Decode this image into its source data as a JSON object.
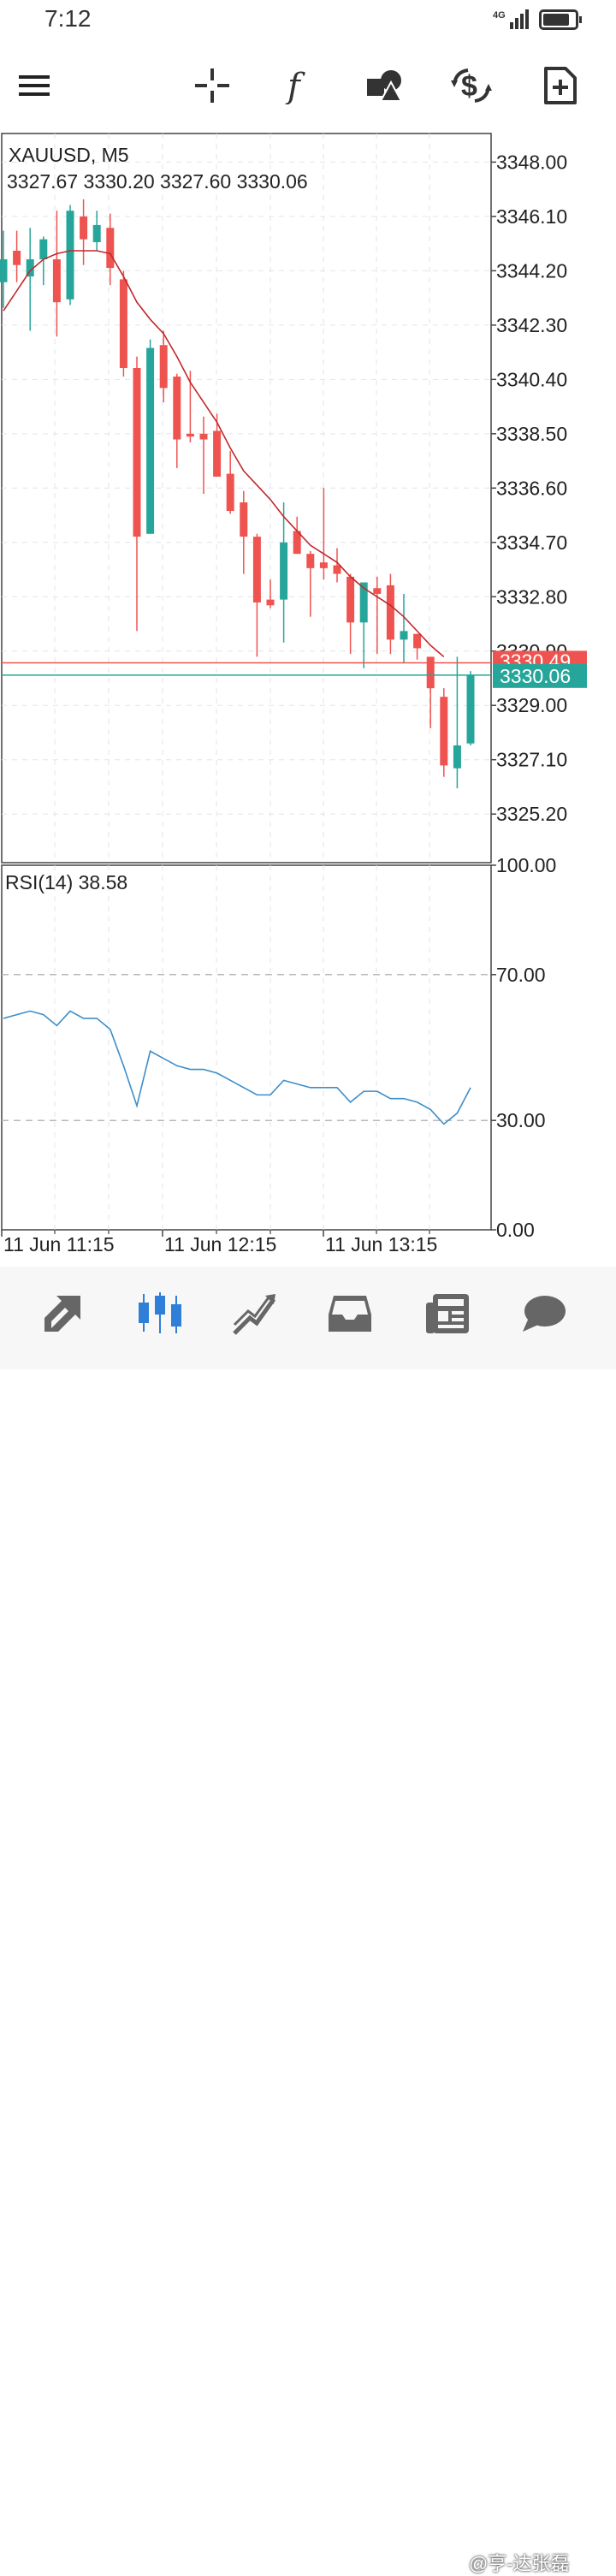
{
  "status_bar": {
    "time": "7:12",
    "network": "4G"
  },
  "toolbar": {
    "buttons": [
      {
        "name": "menu",
        "icon": "hamburger-icon"
      },
      {
        "name": "crosshair",
        "icon": "crosshair-icon"
      },
      {
        "name": "indicators",
        "icon": "function-icon"
      },
      {
        "name": "objects",
        "icon": "shapes-icon"
      },
      {
        "name": "trade",
        "icon": "dollar-arrows-icon"
      },
      {
        "name": "new-order",
        "icon": "document-plus-icon"
      }
    ]
  },
  "chart": {
    "symbol_label": "XAUUSD, M5",
    "ohlc_label": "3327.67 3330.20 3327.60 3330.06",
    "price_ticks": [
      "3348.00",
      "3346.10",
      "3344.20",
      "3342.30",
      "3340.40",
      "3338.50",
      "3336.60",
      "3334.70",
      "3332.80",
      "3330.90",
      "3329.00",
      "3327.10",
      "3325.20"
    ],
    "ask_label": "3330.49",
    "bid_label": "3330.06",
    "rsi_label": "RSI(14) 38.58",
    "rsi_ticks": [
      "100.00",
      "70.00",
      "30.00",
      "0.00"
    ],
    "time_labels": [
      "11 Jun 11:15",
      "11 Jun 12:15",
      "11 Jun 13:15"
    ],
    "colors": {
      "bull": "#26a69a",
      "bear": "#ef5350",
      "ma": "#c0292b",
      "rsi": "#3d8ec9",
      "bid_line": "#26a69a",
      "ask_line": "#ef5350"
    }
  },
  "chart_data": {
    "type": "candlestick",
    "timeframe": "M5",
    "price_range": [
      3323.5,
      3349
    ],
    "rsi_range": [
      0,
      100
    ],
    "candles": [
      {
        "o": 3343.8,
        "h": 3345.6,
        "l": 3342.9,
        "c": 3344.6
      },
      {
        "o": 3344.9,
        "h": 3345.6,
        "l": 3343.8,
        "c": 3344.4
      },
      {
        "o": 3344.0,
        "h": 3345.7,
        "l": 3342.1,
        "c": 3344.6
      },
      {
        "o": 3344.6,
        "h": 3345.4,
        "l": 3343.7,
        "c": 3345.3
      },
      {
        "o": 3344.6,
        "h": 3346.3,
        "l": 3341.9,
        "c": 3343.1
      },
      {
        "o": 3343.2,
        "h": 3346.5,
        "l": 3343.0,
        "c": 3346.3
      },
      {
        "o": 3346.1,
        "h": 3346.7,
        "l": 3344.4,
        "c": 3345.3
      },
      {
        "o": 3345.2,
        "h": 3346.3,
        "l": 3344.9,
        "c": 3345.8
      },
      {
        "o": 3345.7,
        "h": 3346.2,
        "l": 3343.7,
        "c": 3344.3
      },
      {
        "o": 3343.9,
        "h": 3344.2,
        "l": 3340.5,
        "c": 3340.8
      },
      {
        "o": 3340.8,
        "h": 3341.2,
        "l": 3331.6,
        "c": 3334.9
      },
      {
        "o": 3335.0,
        "h": 3341.8,
        "l": 3335.0,
        "c": 3341.5
      },
      {
        "o": 3341.6,
        "h": 3342.1,
        "l": 3339.6,
        "c": 3340.1
      },
      {
        "o": 3340.5,
        "h": 3340.6,
        "l": 3337.3,
        "c": 3338.3
      },
      {
        "o": 3338.5,
        "h": 3340.7,
        "l": 3338.2,
        "c": 3338.4
      },
      {
        "o": 3338.5,
        "h": 3339.1,
        "l": 3336.4,
        "c": 3338.3
      },
      {
        "o": 3338.6,
        "h": 3339.2,
        "l": 3337.0,
        "c": 3337.0
      },
      {
        "o": 3337.1,
        "h": 3337.9,
        "l": 3335.7,
        "c": 3335.8
      },
      {
        "o": 3336.1,
        "h": 3336.5,
        "l": 3333.6,
        "c": 3334.9
      },
      {
        "o": 3334.9,
        "h": 3335.0,
        "l": 3330.7,
        "c": 3332.6
      },
      {
        "o": 3332.7,
        "h": 3333.4,
        "l": 3332.4,
        "c": 3332.5
      },
      {
        "o": 3332.7,
        "h": 3336.1,
        "l": 3331.2,
        "c": 3334.7
      },
      {
        "o": 3335.1,
        "h": 3335.6,
        "l": 3334.3,
        "c": 3334.3
      },
      {
        "o": 3334.3,
        "h": 3334.4,
        "l": 3332.1,
        "c": 3333.8
      },
      {
        "o": 3334.0,
        "h": 3336.6,
        "l": 3333.4,
        "c": 3333.8
      },
      {
        "o": 3333.9,
        "h": 3334.5,
        "l": 3333.3,
        "c": 3333.6
      },
      {
        "o": 3333.5,
        "h": 3333.6,
        "l": 3330.8,
        "c": 3331.9
      },
      {
        "o": 3331.9,
        "h": 3333.3,
        "l": 3330.3,
        "c": 3333.3
      },
      {
        "o": 3333.1,
        "h": 3333.5,
        "l": 3330.8,
        "c": 3332.9
      },
      {
        "o": 3333.2,
        "h": 3333.6,
        "l": 3330.8,
        "c": 3331.3
      },
      {
        "o": 3331.3,
        "h": 3332.9,
        "l": 3330.5,
        "c": 3331.6
      },
      {
        "o": 3331.5,
        "h": 3331.5,
        "l": 3330.6,
        "c": 3331.0
      },
      {
        "o": 3330.7,
        "h": 3330.7,
        "l": 3328.2,
        "c": 3329.6
      },
      {
        "o": 3329.3,
        "h": 3329.6,
        "l": 3326.5,
        "c": 3326.9
      },
      {
        "o": 3326.8,
        "h": 3330.7,
        "l": 3326.1,
        "c": 3327.6
      },
      {
        "o": 3327.67,
        "h": 3330.2,
        "l": 3327.6,
        "c": 3330.06
      }
    ],
    "ma": [
      3342.8,
      3343.5,
      3344.2,
      3344.6,
      3344.8,
      3344.9,
      3344.9,
      3344.9,
      3344.8,
      3344.0,
      3343.1,
      3342.5,
      3342.0,
      3341.2,
      3340.3,
      3339.6,
      3338.9,
      3338.0,
      3337.2,
      3336.7,
      3336.2,
      3335.6,
      3335.1,
      3334.6,
      3334.3,
      3334.0,
      3333.5,
      3333.1,
      3332.8,
      3332.5,
      3332.1,
      3331.6,
      3331.1,
      3330.7
    ],
    "rsi": [
      58,
      59,
      60,
      59,
      56,
      60,
      58,
      58,
      55,
      45,
      34,
      49,
      47,
      45,
      44,
      44,
      43,
      41,
      39,
      37,
      37,
      41,
      40,
      39,
      39,
      39,
      35,
      38,
      38,
      36,
      36,
      35,
      33,
      29,
      32,
      39
    ]
  },
  "bottom_nav": {
    "items": [
      {
        "name": "quotes",
        "icon": "quotes-arrows-icon",
        "active": false
      },
      {
        "name": "chart",
        "icon": "candlestick-icon",
        "active": true
      },
      {
        "name": "trade",
        "icon": "trend-line-icon",
        "active": false
      },
      {
        "name": "history",
        "icon": "inbox-icon",
        "active": false
      },
      {
        "name": "news",
        "icon": "news-icon",
        "active": false
      },
      {
        "name": "messages",
        "icon": "chat-bubble-icon",
        "active": false
      }
    ],
    "watermark": "@亨-达张磊"
  }
}
